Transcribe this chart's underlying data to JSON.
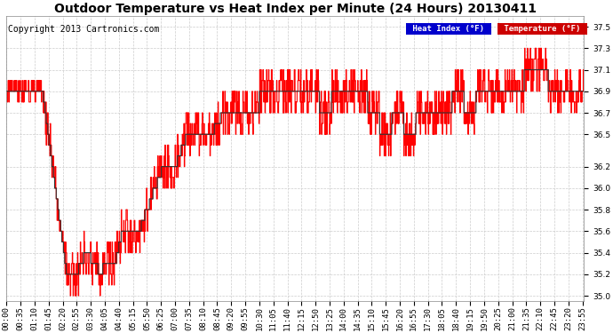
{
  "title": "Outdoor Temperature vs Heat Index per Minute (24 Hours) 20130411",
  "copyright": "Copyright 2013 Cartronics.com",
  "legend_heat_index": "Heat Index (°F)",
  "legend_temperature": "Temperature (°F)",
  "legend_heat_bg": "#0000CC",
  "legend_temp_bg": "#CC0000",
  "ylim": [
    34.95,
    37.6
  ],
  "yticks": [
    35.0,
    35.2,
    35.4,
    35.6,
    35.8,
    36.0,
    36.2,
    36.5,
    36.7,
    36.9,
    37.1,
    37.3,
    37.5
  ],
  "bg_color": "#FFFFFF",
  "plot_bg": "#FFFFFF",
  "grid_color": "#CCCCCC",
  "temp_color": "#333333",
  "heat_color": "#FF0000",
  "title_fontsize": 10,
  "copyright_fontsize": 7,
  "tick_fontsize": 6.5,
  "tick_interval_minutes": 35
}
